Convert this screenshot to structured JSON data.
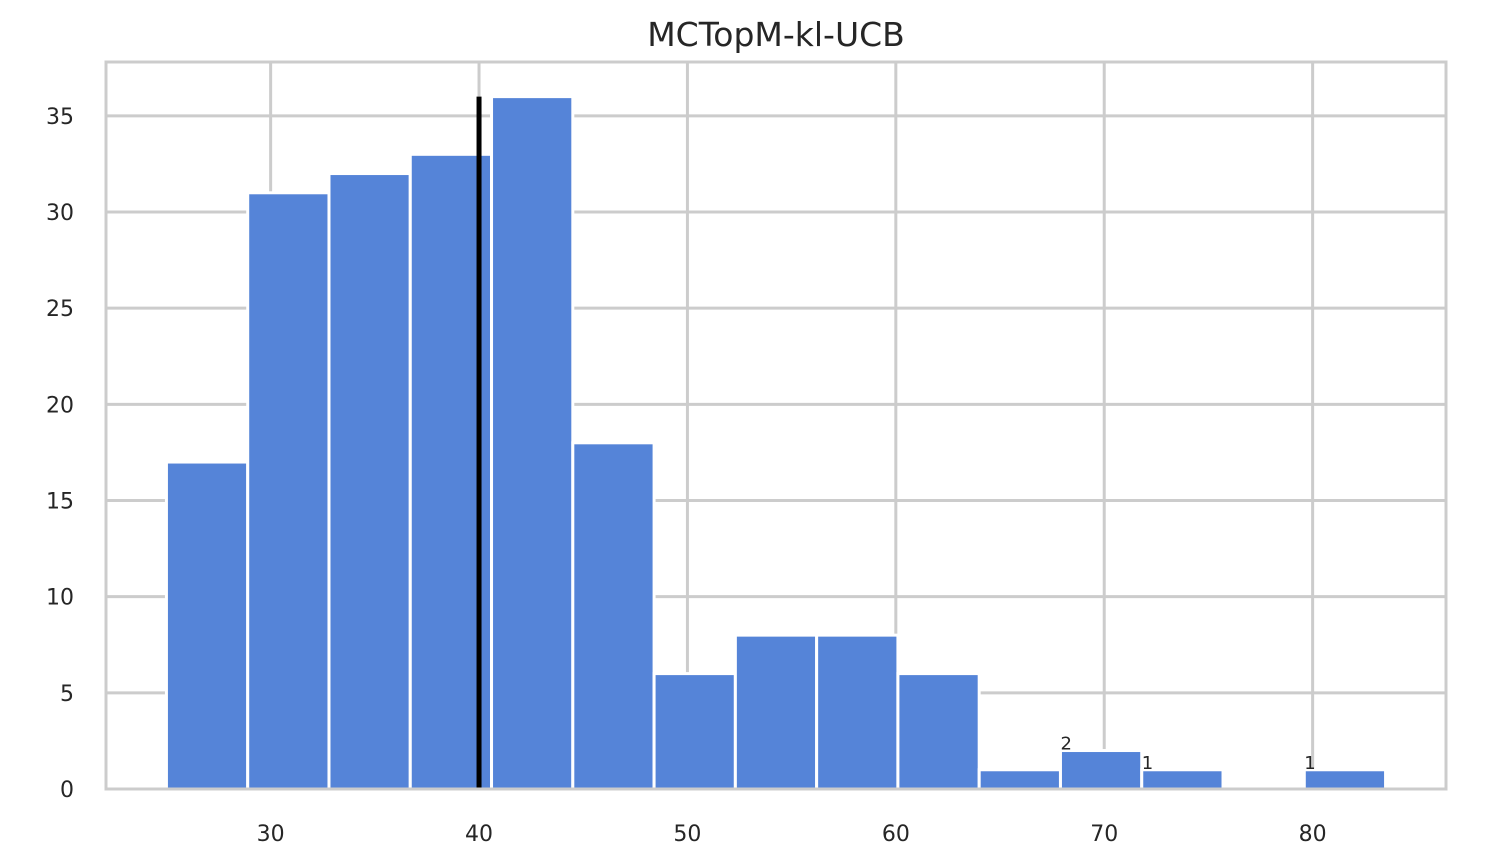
{
  "chart_data": {
    "type": "bar",
    "title": "MCTopM-kl-UCB",
    "xlabel": "",
    "ylabel": "",
    "xlim": [
      22.1,
      86.4
    ],
    "ylim": [
      0,
      37.8
    ],
    "xticks": [
      30,
      40,
      50,
      60,
      70,
      80
    ],
    "yticks": [
      0,
      5,
      10,
      15,
      20,
      25,
      30,
      35
    ],
    "grid": true,
    "bar_color": "#5584d8",
    "bins": [
      [
        25.0,
        28.9
      ],
      [
        28.9,
        32.8
      ],
      [
        32.8,
        36.7
      ],
      [
        36.7,
        40.6
      ],
      [
        40.6,
        44.5
      ],
      [
        44.5,
        48.4
      ],
      [
        48.4,
        52.3
      ],
      [
        52.3,
        56.2
      ],
      [
        56.2,
        60.1
      ],
      [
        60.1,
        64.0
      ],
      [
        64.0,
        67.9
      ],
      [
        67.9,
        71.8
      ],
      [
        71.8,
        75.7
      ],
      [
        75.7,
        79.6
      ],
      [
        79.6,
        83.5
      ]
    ],
    "values": [
      17,
      31,
      32,
      33,
      36,
      18,
      6,
      8,
      8,
      6,
      1,
      2,
      1,
      0,
      1
    ],
    "bar_labels": [
      {
        "bin_index": 11,
        "text": "2"
      },
      {
        "bin_index": 12,
        "text": "1"
      },
      {
        "bin_index": 14,
        "text": "1"
      }
    ],
    "vertical_line": {
      "x": 40.0,
      "color": "#000000"
    }
  }
}
